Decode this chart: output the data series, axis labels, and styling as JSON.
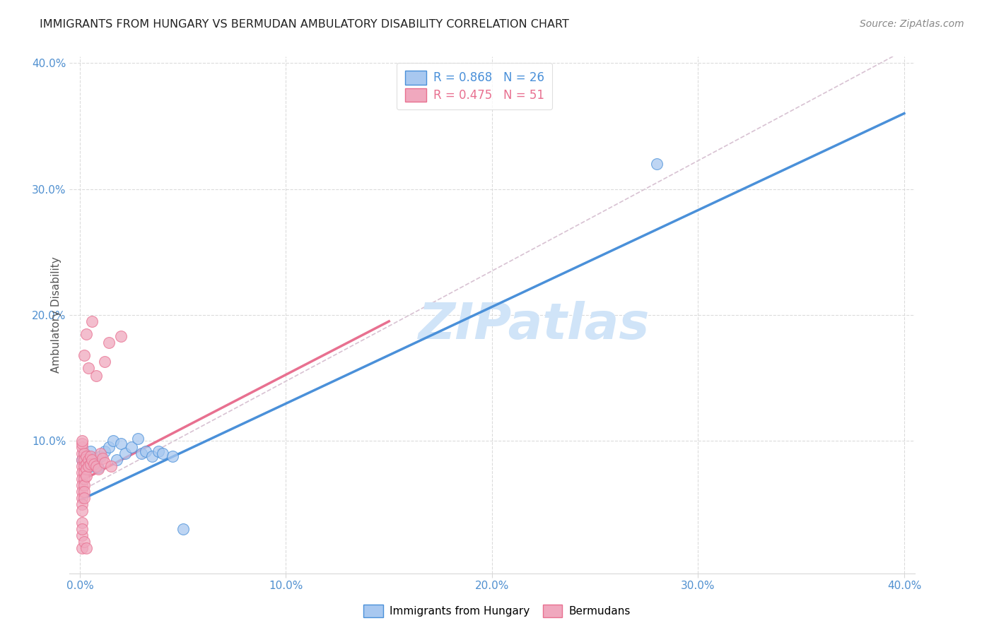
{
  "title": "IMMIGRANTS FROM HUNGARY VS BERMUDAN AMBULATORY DISABILITY CORRELATION CHART",
  "source": "Source: ZipAtlas.com",
  "ylabel": "Ambulatory Disability",
  "xlim": [
    -0.005,
    0.405
  ],
  "ylim": [
    -0.005,
    0.405
  ],
  "xticks": [
    0.0,
    0.1,
    0.2,
    0.3,
    0.4
  ],
  "yticks": [
    0.1,
    0.2,
    0.3,
    0.4
  ],
  "xticklabels": [
    "0.0%",
    "10.0%",
    "20.0%",
    "30.0%",
    "40.0%"
  ],
  "yticklabels": [
    "10.0%",
    "20.0%",
    "30.0%",
    "40.0%"
  ],
  "legend_r1": "R = 0.868   N = 26",
  "legend_r2": "R = 0.475   N = 51",
  "blue_scatter": [
    [
      0.001,
      0.085
    ],
    [
      0.002,
      0.09
    ],
    [
      0.003,
      0.082
    ],
    [
      0.004,
      0.088
    ],
    [
      0.005,
      0.092
    ],
    [
      0.006,
      0.08
    ],
    [
      0.007,
      0.086
    ],
    [
      0.008,
      0.083
    ],
    [
      0.009,
      0.079
    ],
    [
      0.01,
      0.088
    ],
    [
      0.012,
      0.092
    ],
    [
      0.014,
      0.095
    ],
    [
      0.016,
      0.1
    ],
    [
      0.018,
      0.085
    ],
    [
      0.02,
      0.098
    ],
    [
      0.022,
      0.09
    ],
    [
      0.025,
      0.095
    ],
    [
      0.028,
      0.102
    ],
    [
      0.03,
      0.09
    ],
    [
      0.032,
      0.092
    ],
    [
      0.035,
      0.088
    ],
    [
      0.038,
      0.092
    ],
    [
      0.04,
      0.09
    ],
    [
      0.045,
      0.088
    ],
    [
      0.28,
      0.32
    ],
    [
      0.05,
      0.03
    ]
  ],
  "pink_scatter": [
    [
      0.001,
      0.09
    ],
    [
      0.001,
      0.095
    ],
    [
      0.001,
      0.098
    ],
    [
      0.001,
      0.1
    ],
    [
      0.001,
      0.085
    ],
    [
      0.001,
      0.08
    ],
    [
      0.001,
      0.075
    ],
    [
      0.001,
      0.07
    ],
    [
      0.001,
      0.065
    ],
    [
      0.001,
      0.06
    ],
    [
      0.001,
      0.055
    ],
    [
      0.001,
      0.05
    ],
    [
      0.001,
      0.045
    ],
    [
      0.001,
      0.035
    ],
    [
      0.001,
      0.025
    ],
    [
      0.001,
      0.015
    ],
    [
      0.002,
      0.09
    ],
    [
      0.002,
      0.085
    ],
    [
      0.002,
      0.08
    ],
    [
      0.002,
      0.075
    ],
    [
      0.002,
      0.07
    ],
    [
      0.002,
      0.065
    ],
    [
      0.002,
      0.06
    ],
    [
      0.002,
      0.055
    ],
    [
      0.003,
      0.088
    ],
    [
      0.003,
      0.082
    ],
    [
      0.003,
      0.078
    ],
    [
      0.003,
      0.072
    ],
    [
      0.004,
      0.085
    ],
    [
      0.004,
      0.08
    ],
    [
      0.005,
      0.088
    ],
    [
      0.005,
      0.082
    ],
    [
      0.006,
      0.085
    ],
    [
      0.007,
      0.082
    ],
    [
      0.008,
      0.08
    ],
    [
      0.009,
      0.078
    ],
    [
      0.01,
      0.09
    ],
    [
      0.011,
      0.086
    ],
    [
      0.012,
      0.083
    ],
    [
      0.015,
      0.08
    ],
    [
      0.003,
      0.185
    ],
    [
      0.006,
      0.195
    ],
    [
      0.014,
      0.178
    ],
    [
      0.02,
      0.183
    ],
    [
      0.002,
      0.168
    ],
    [
      0.004,
      0.158
    ],
    [
      0.008,
      0.152
    ],
    [
      0.012,
      0.163
    ],
    [
      0.001,
      0.03
    ],
    [
      0.002,
      0.02
    ],
    [
      0.003,
      0.015
    ]
  ],
  "blue_line": {
    "x0": 0.0,
    "y0": 0.053,
    "x1": 0.4,
    "y1": 0.36
  },
  "pink_line": {
    "x0": 0.0,
    "y0": 0.068,
    "x1": 0.15,
    "y1": 0.195
  },
  "dashed_line": {
    "x0": 0.0,
    "y0": 0.06,
    "x1": 0.4,
    "y1": 0.41
  },
  "blue_color": "#4a90d9",
  "pink_color": "#e87090",
  "blue_scatter_color": "#a8c8f0",
  "pink_scatter_color": "#f0a8be",
  "dashed_color": "#c8a8c0",
  "watermark_text": "ZIPatlas",
  "watermark_color": "#d0e4f8",
  "background_color": "#ffffff",
  "grid_color": "#d8d8d8",
  "tick_color": "#5090d0",
  "ylabel_color": "#555555",
  "title_color": "#222222",
  "source_color": "#888888"
}
